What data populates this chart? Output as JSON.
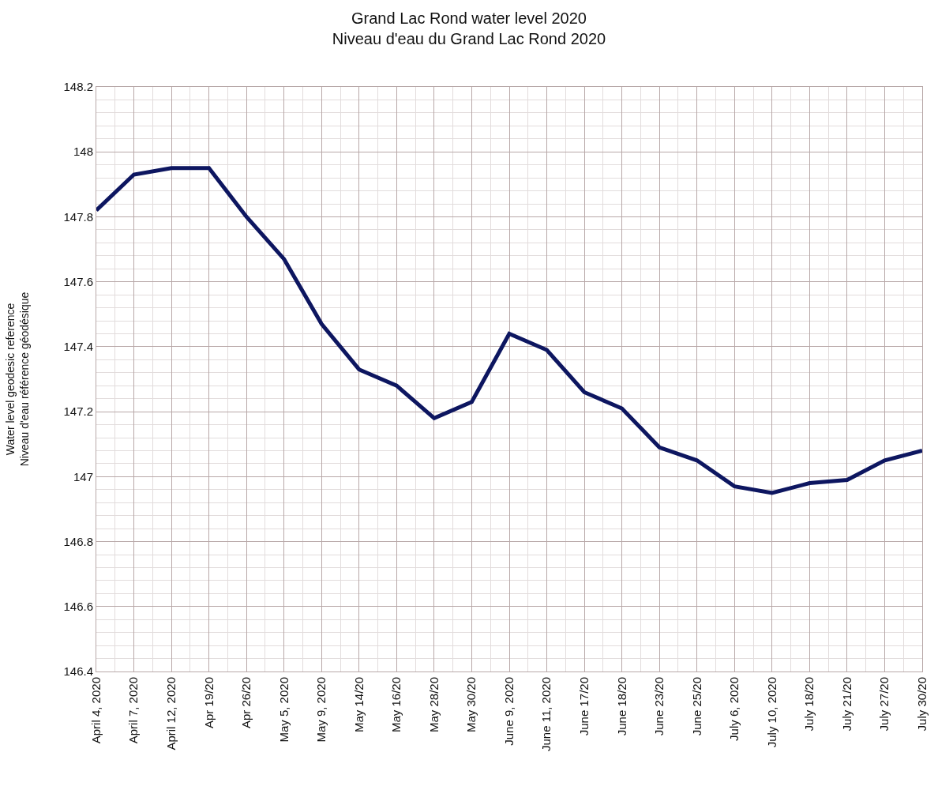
{
  "chart_data": {
    "type": "line",
    "title": "Grand Lac Rond water level 2020\nNiveau d'eau du Grand Lac Rond 2020",
    "ylabel": "Water level geodesic reference\nNiveau d'eau référence géodésique",
    "categories": [
      "April 4, 2020",
      "April 7, 2020",
      "April 12, 2020",
      "Apr 19/20",
      "Apr 26/20",
      "May 5, 2020",
      "May 9, 2020",
      "May 14/20",
      "May 16/20",
      "May 28/20",
      "May 30/20",
      "June 9, 2020",
      "June 11, 2020",
      "June 17/20",
      "June 18/20",
      "June 23/20",
      "June 25/20",
      "July 6, 2020",
      "July 10, 2020",
      "July 18/20",
      "July 21/20",
      "July 27/20",
      "July 30/20"
    ],
    "series": [
      {
        "color": "#0d1660",
        "values": [
          147.82,
          147.93,
          147.95,
          147.95,
          147.8,
          147.67,
          147.47,
          147.33,
          147.28,
          147.18,
          147.23,
          147.44,
          147.39,
          147.26,
          147.21,
          147.09,
          147.05,
          146.97,
          146.95,
          146.98,
          146.99,
          147.05,
          147.08
        ]
      }
    ],
    "ylim": [
      146.4,
      148.2
    ],
    "yticks": [
      146.4,
      146.6,
      146.8,
      147,
      147.2,
      147.4,
      147.6,
      147.8,
      148,
      148.2
    ],
    "grid": true,
    "marker": "none",
    "line_style": "solid"
  }
}
